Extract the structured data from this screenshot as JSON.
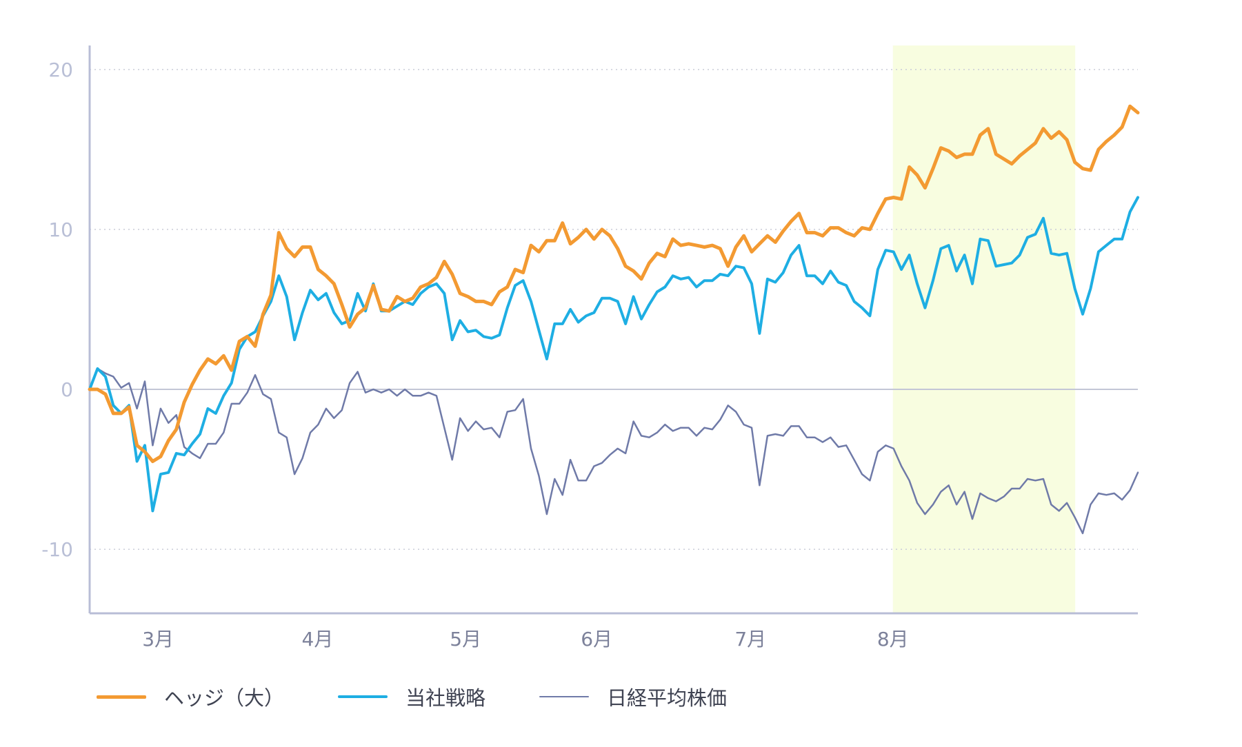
{
  "chart_data": {
    "type": "line",
    "title": "",
    "xlabel": "",
    "ylabel": "",
    "ylim": [
      -14,
      21.5
    ],
    "yticks": [
      20,
      10,
      0,
      -10
    ],
    "x_range": [
      0,
      184
    ],
    "month_ticks": [
      {
        "label": "3月",
        "x": 12
      },
      {
        "label": "4月",
        "x": 40
      },
      {
        "label": "5月",
        "x": 66
      },
      {
        "label": "6月",
        "x": 89
      },
      {
        "label": "7月",
        "x": 116
      },
      {
        "label": "8月",
        "x": 141
      }
    ],
    "zero_line": 0,
    "grid": "horizontal-dotted",
    "legend_position": "bottom-left",
    "highlight": {
      "from": 141,
      "to": 173,
      "color": "#f8fde0"
    },
    "series": [
      {
        "name": "ヘッジ（大）",
        "color": "#f39a32",
        "stroke": 5,
        "values": [
          0.0,
          0.0,
          -0.3,
          -1.5,
          -1.5,
          -1.1,
          -3.5,
          -3.9,
          -4.5,
          -4.2,
          -3.2,
          -2.5,
          -0.8,
          0.3,
          1.2,
          1.9,
          1.6,
          2.1,
          1.2,
          3.0,
          3.3,
          2.7,
          4.7,
          5.9,
          9.8,
          8.8,
          8.3,
          8.9,
          8.9,
          7.5,
          7.1,
          6.6,
          5.3,
          3.9,
          4.7,
          5.1,
          6.5,
          5.0,
          4.9,
          5.8,
          5.5,
          5.7,
          6.4,
          6.6,
          7.0,
          8.0,
          7.2,
          6.0,
          5.8,
          5.5,
          5.5,
          5.3,
          6.1,
          6.4,
          7.5,
          7.3,
          9.0,
          8.6,
          9.3,
          9.3,
          10.4,
          9.1,
          9.5,
          10.0,
          9.4,
          10.0,
          9.6,
          8.8,
          7.7,
          7.4,
          6.9,
          7.9,
          8.5,
          8.3,
          9.4,
          9.0,
          9.1,
          9.0,
          8.9,
          9.0,
          8.8,
          7.7,
          8.9,
          9.6,
          8.6,
          9.1,
          9.6,
          9.2,
          9.9,
          10.5,
          11.0,
          9.8,
          9.8,
          9.6,
          10.1,
          10.1,
          9.8,
          9.6,
          10.1,
          10.0,
          11.0,
          11.9,
          12.0,
          11.9,
          13.9,
          13.4,
          12.6,
          13.8,
          15.1,
          14.9,
          14.5,
          14.7,
          14.7,
          15.9,
          16.3,
          14.7,
          14.4,
          14.1,
          14.6,
          15.0,
          15.4,
          16.3,
          15.7,
          16.1,
          15.6,
          14.2,
          13.8,
          13.7,
          15.0,
          15.5,
          15.9,
          16.4,
          17.7,
          17.3
        ]
      },
      {
        "name": "当社戦略",
        "color": "#1eaee3",
        "stroke": 4,
        "values": [
          0.0,
          1.3,
          0.8,
          -1.0,
          -1.5,
          -1.0,
          -4.5,
          -3.5,
          -7.6,
          -5.3,
          -5.2,
          -4.0,
          -4.1,
          -3.4,
          -2.8,
          -1.2,
          -1.5,
          -0.4,
          0.4,
          2.5,
          3.3,
          3.6,
          4.6,
          5.5,
          7.1,
          5.8,
          3.1,
          4.8,
          6.2,
          5.6,
          6.0,
          4.8,
          4.1,
          4.3,
          6.0,
          4.9,
          6.6,
          4.9,
          4.9,
          5.2,
          5.5,
          5.3,
          6.0,
          6.4,
          6.6,
          6.0,
          3.1,
          4.3,
          3.6,
          3.7,
          3.3,
          3.2,
          3.4,
          5.1,
          6.5,
          6.8,
          5.5,
          3.7,
          1.9,
          4.1,
          4.1,
          5.0,
          4.2,
          4.6,
          4.8,
          5.7,
          5.7,
          5.5,
          4.1,
          5.8,
          4.4,
          5.3,
          6.1,
          6.4,
          7.1,
          6.9,
          7.0,
          6.4,
          6.8,
          6.8,
          7.2,
          7.1,
          7.7,
          7.6,
          6.6,
          3.5,
          6.9,
          6.7,
          7.3,
          8.4,
          9.0,
          7.1,
          7.1,
          6.6,
          7.4,
          6.7,
          6.5,
          5.5,
          5.1,
          4.6,
          7.5,
          8.7,
          8.6,
          7.5,
          8.4,
          6.6,
          5.1,
          6.8,
          8.8,
          9.0,
          7.4,
          8.4,
          6.6,
          9.4,
          9.3,
          7.7,
          7.8,
          7.9,
          8.4,
          9.5,
          9.7,
          10.7,
          8.5,
          8.4,
          8.5,
          6.3,
          4.7,
          6.3,
          8.6,
          9.0,
          9.4,
          9.4,
          11.1,
          12.0
        ]
      },
      {
        "name": "日経平均株価",
        "color": "#6f7aa8",
        "stroke": 2.5,
        "values": [
          0.0,
          1.3,
          1.0,
          0.8,
          0.1,
          0.4,
          -1.2,
          0.5,
          -3.5,
          -1.2,
          -2.1,
          -1.6,
          -3.6,
          -4.0,
          -4.3,
          -3.4,
          -3.4,
          -2.7,
          -0.9,
          -0.9,
          -0.2,
          0.9,
          -0.3,
          -0.6,
          -2.7,
          -3.0,
          -5.3,
          -4.3,
          -2.7,
          -2.2,
          -1.2,
          -1.8,
          -1.3,
          0.4,
          1.1,
          -0.2,
          0.0,
          -0.2,
          0.0,
          -0.4,
          0.0,
          -0.4,
          -0.4,
          -0.2,
          -0.4,
          -2.4,
          -4.4,
          -1.8,
          -2.6,
          -2.0,
          -2.5,
          -2.4,
          -3.0,
          -1.4,
          -1.3,
          -0.6,
          -3.7,
          -5.4,
          -7.8,
          -5.6,
          -6.6,
          -4.4,
          -5.7,
          -5.7,
          -4.8,
          -4.6,
          -4.1,
          -3.7,
          -4.0,
          -2.0,
          -2.9,
          -3.0,
          -2.7,
          -2.2,
          -2.6,
          -2.4,
          -2.4,
          -2.9,
          -2.4,
          -2.5,
          -1.9,
          -1.0,
          -1.4,
          -2.2,
          -2.4,
          -6.0,
          -2.9,
          -2.8,
          -2.9,
          -2.3,
          -2.3,
          -3.0,
          -3.0,
          -3.3,
          -3.0,
          -3.6,
          -3.5,
          -4.4,
          -5.3,
          -5.7,
          -3.9,
          -3.5,
          -3.7,
          -4.8,
          -5.7,
          -7.1,
          -7.8,
          -7.2,
          -6.4,
          -6.0,
          -7.2,
          -6.4,
          -8.1,
          -6.5,
          -6.8,
          -7.0,
          -6.7,
          -6.2,
          -6.2,
          -5.6,
          -5.7,
          -5.6,
          -7.2,
          -7.6,
          -7.1,
          -8.0,
          -9.0,
          -7.2,
          -6.5,
          -6.6,
          -6.5,
          -6.9,
          -6.3,
          -5.2
        ]
      }
    ]
  }
}
